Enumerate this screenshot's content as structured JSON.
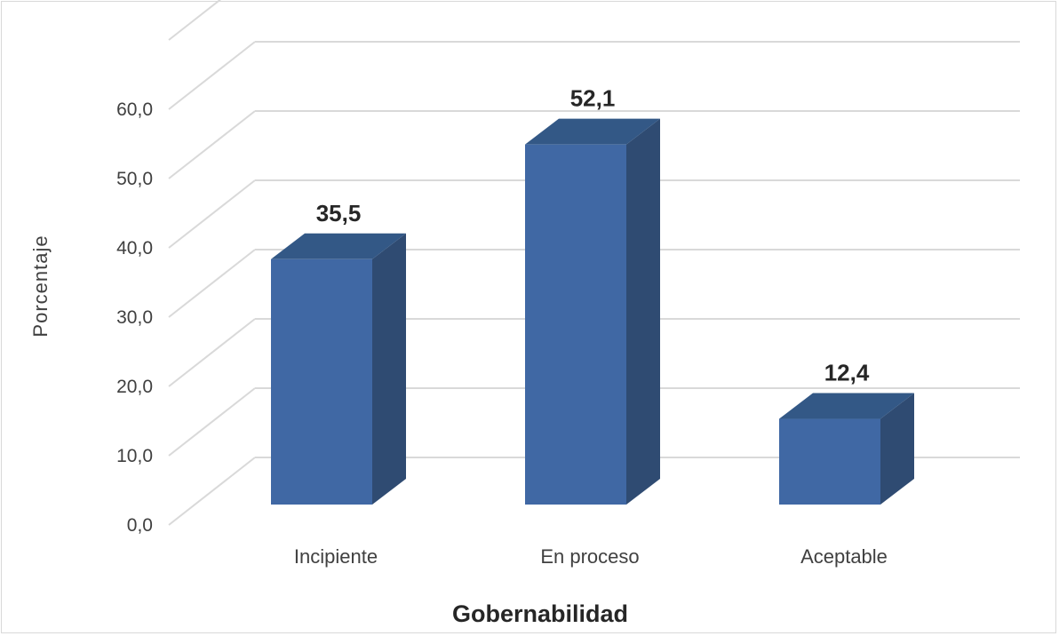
{
  "chart_data": {
    "type": "bar",
    "title": "",
    "xlabel": "Gobernabilidad",
    "ylabel": "Porcentaje",
    "categories": [
      "Incipiente",
      "En proceso",
      "Aceptable"
    ],
    "values": [
      35.5,
      52.1,
      12.4
    ],
    "value_labels": [
      "35,5",
      "52,1",
      "12,4"
    ],
    "yticks": [
      "0,0",
      "10,0",
      "20,0",
      "30,0",
      "40,0",
      "50,0",
      "60,0"
    ],
    "ylim": [
      0,
      70
    ],
    "grid": true,
    "legend": "none",
    "style": "3d-column",
    "colors": {
      "front": "#4068a4",
      "side": "#2f4b72",
      "top": "#335886",
      "grid": "#d9d9d9"
    }
  }
}
